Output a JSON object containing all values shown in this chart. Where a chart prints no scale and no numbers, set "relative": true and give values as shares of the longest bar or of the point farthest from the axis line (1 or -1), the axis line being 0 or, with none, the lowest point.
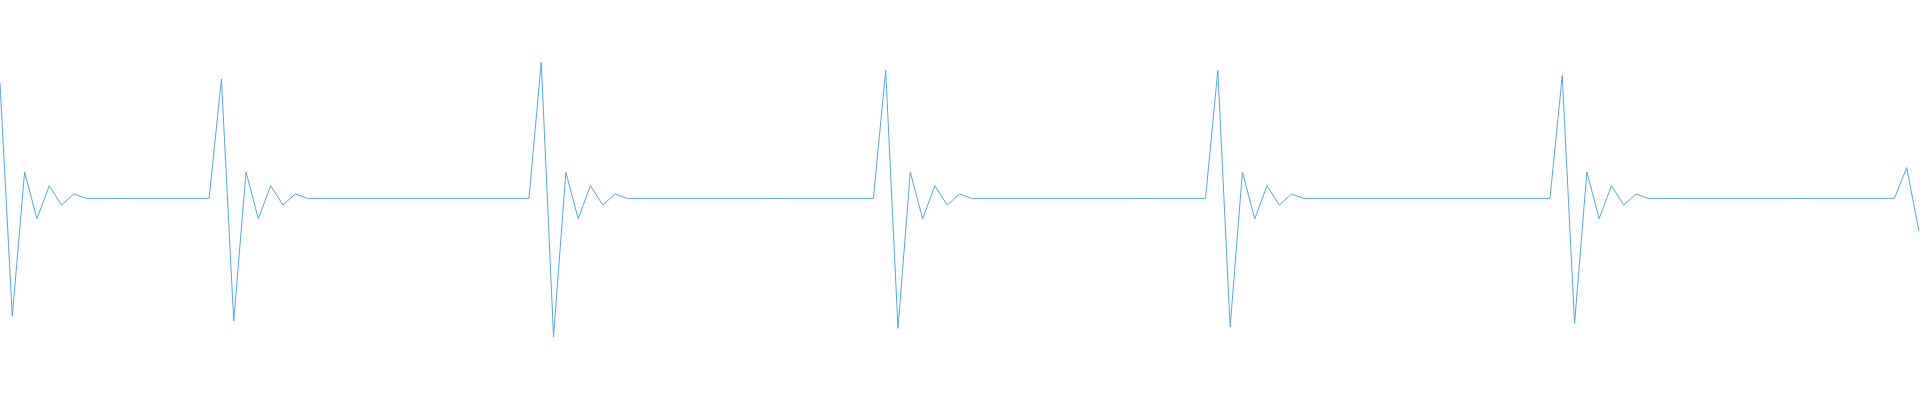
{
  "chart_data": {
    "type": "line",
    "relative": true,
    "color": "#55a7e0",
    "marker": "none",
    "categories": [
      null,
      null,
      null,
      null,
      null,
      null,
      null,
      null,
      null,
      null,
      null,
      null,
      null,
      null,
      null,
      null,
      null,
      null,
      null,
      null,
      null,
      null,
      null,
      null,
      null,
      null,
      null,
      null,
      null,
      null,
      null,
      null,
      null,
      null,
      null,
      null,
      null,
      null,
      null,
      null,
      null,
      null,
      null,
      null,
      null,
      null,
      null,
      null,
      null,
      null,
      null,
      null,
      null,
      null,
      null,
      null,
      null,
      null,
      null,
      null,
      null,
      null,
      null,
      null,
      null,
      null,
      null,
      null,
      null,
      null,
      null,
      null,
      null,
      null,
      null,
      null,
      null,
      null,
      null,
      null,
      null,
      null,
      null,
      null,
      null,
      null,
      null,
      null,
      null,
      null,
      null,
      null,
      null,
      null,
      null,
      null,
      null,
      null,
      null,
      null,
      null,
      null,
      null,
      null,
      null,
      null,
      null,
      null,
      null,
      null,
      null,
      null,
      null,
      null,
      null,
      null,
      null,
      null,
      null,
      null,
      null,
      null,
      null,
      null,
      null,
      null,
      null,
      null,
      null,
      null,
      null,
      null,
      null,
      null,
      null,
      null,
      null,
      null,
      null,
      null,
      null,
      null,
      null,
      null,
      null,
      null,
      null,
      null,
      null,
      null,
      null,
      null,
      null,
      null,
      null,
      null,
      null
    ],
    "values": [
      0.924,
      0.076,
      0.6,
      0.43,
      0.55,
      0.48,
      0.52,
      0.504,
      0.504,
      0.504,
      0.504,
      0.504,
      0.504,
      0.504,
      0.504,
      0.504,
      0.504,
      0.504,
      0.938,
      0.058,
      0.6,
      0.43,
      0.55,
      0.48,
      0.52,
      0.504,
      0.504,
      0.504,
      0.504,
      0.504,
      0.504,
      0.504,
      0.504,
      0.504,
      0.504,
      0.504,
      0.504,
      0.504,
      0.504,
      0.504,
      0.504,
      0.504,
      0.504,
      0.504,
      1,
      0,
      0.6,
      0.43,
      0.55,
      0.48,
      0.52,
      0.504,
      0.504,
      0.504,
      0.504,
      0.504,
      0.504,
      0.504,
      0.504,
      0.504,
      0.504,
      0.504,
      0.504,
      0.504,
      0.504,
      0.504,
      0.504,
      0.504,
      0.504,
      0.504,
      0.504,
      0.504,
      0.969,
      0.031,
      0.6,
      0.43,
      0.55,
      0.48,
      0.52,
      0.504,
      0.504,
      0.504,
      0.504,
      0.504,
      0.504,
      0.504,
      0.504,
      0.504,
      0.504,
      0.504,
      0.504,
      0.504,
      0.504,
      0.504,
      0.504,
      0.504,
      0.504,
      0.504,
      0.504,
      0.969,
      0.036,
      0.6,
      0.43,
      0.55,
      0.48,
      0.52,
      0.504,
      0.504,
      0.504,
      0.504,
      0.504,
      0.504,
      0.504,
      0.504,
      0.504,
      0.504,
      0.504,
      0.504,
      0.504,
      0.504,
      0.504,
      0.504,
      0.504,
      0.504,
      0.504,
      0.504,
      0.504,
      0.951,
      0.049,
      0.6,
      0.43,
      0.55,
      0.48,
      0.52,
      0.504,
      0.504,
      0.504,
      0.504,
      0.504,
      0.504,
      0.504,
      0.504,
      0.504,
      0.504,
      0.504,
      0.504,
      0.504,
      0.504,
      0.504,
      0.504,
      0.504,
      0.504,
      0.504,
      0.504,
      0.504,
      0.616,
      0.384
    ]
  }
}
